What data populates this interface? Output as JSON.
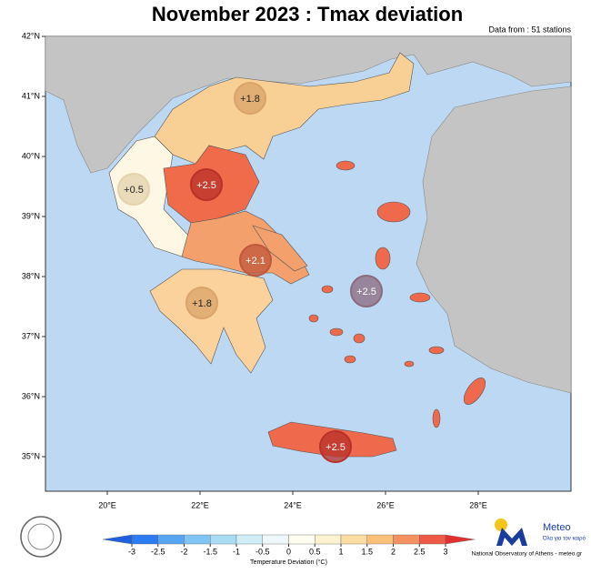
{
  "map": {
    "title": "November 2023 : Tmax deviation",
    "source_note": "Data from : 51 stations",
    "lat_labels": [
      "42°N",
      "41°N",
      "40°N",
      "39°N",
      "38°N",
      "37°N",
      "36°N",
      "35°N"
    ],
    "lon_labels": [
      "20°E",
      "22°E",
      "24°E",
      "26°E",
      "28°E"
    ],
    "regions": [
      {
        "label": "+1.8",
        "color": "#d9a36a"
      },
      {
        "label": "+2.5",
        "color": "#b8302a"
      },
      {
        "label": "+0.5",
        "color": "#e3d2ad"
      },
      {
        "label": "+2.1",
        "color": "#c0573a"
      },
      {
        "label": "+1.8",
        "color": "#d9a36a"
      },
      {
        "label": "+2.5",
        "color": "#8c6a7e"
      },
      {
        "label": "+2.5",
        "color": "#b8302a"
      }
    ],
    "colorbar": {
      "ticks": [
        -3,
        -2.5,
        -2,
        -1.5,
        -1,
        -0.5,
        0,
        0.5,
        1,
        1.5,
        2,
        2.5,
        3
      ],
      "colors": [
        "#2a7cf0",
        "#55a5f2",
        "#7fc4f2",
        "#a8dcf5",
        "#d0eef8",
        "#eef8fb",
        "#fffdf0",
        "#fdf3d0",
        "#fcdca0",
        "#f9c07a",
        "#f59060",
        "#ee5a45"
      ],
      "under_color": "#1f5fe0",
      "over_color": "#e23030",
      "label": "Temperature Deviation (°C)"
    },
    "logo": {
      "name": "Meteo",
      "tagline": "Όλα για τον καιρό",
      "credit": "National Observatory of Athens - meteo.gr"
    }
  }
}
